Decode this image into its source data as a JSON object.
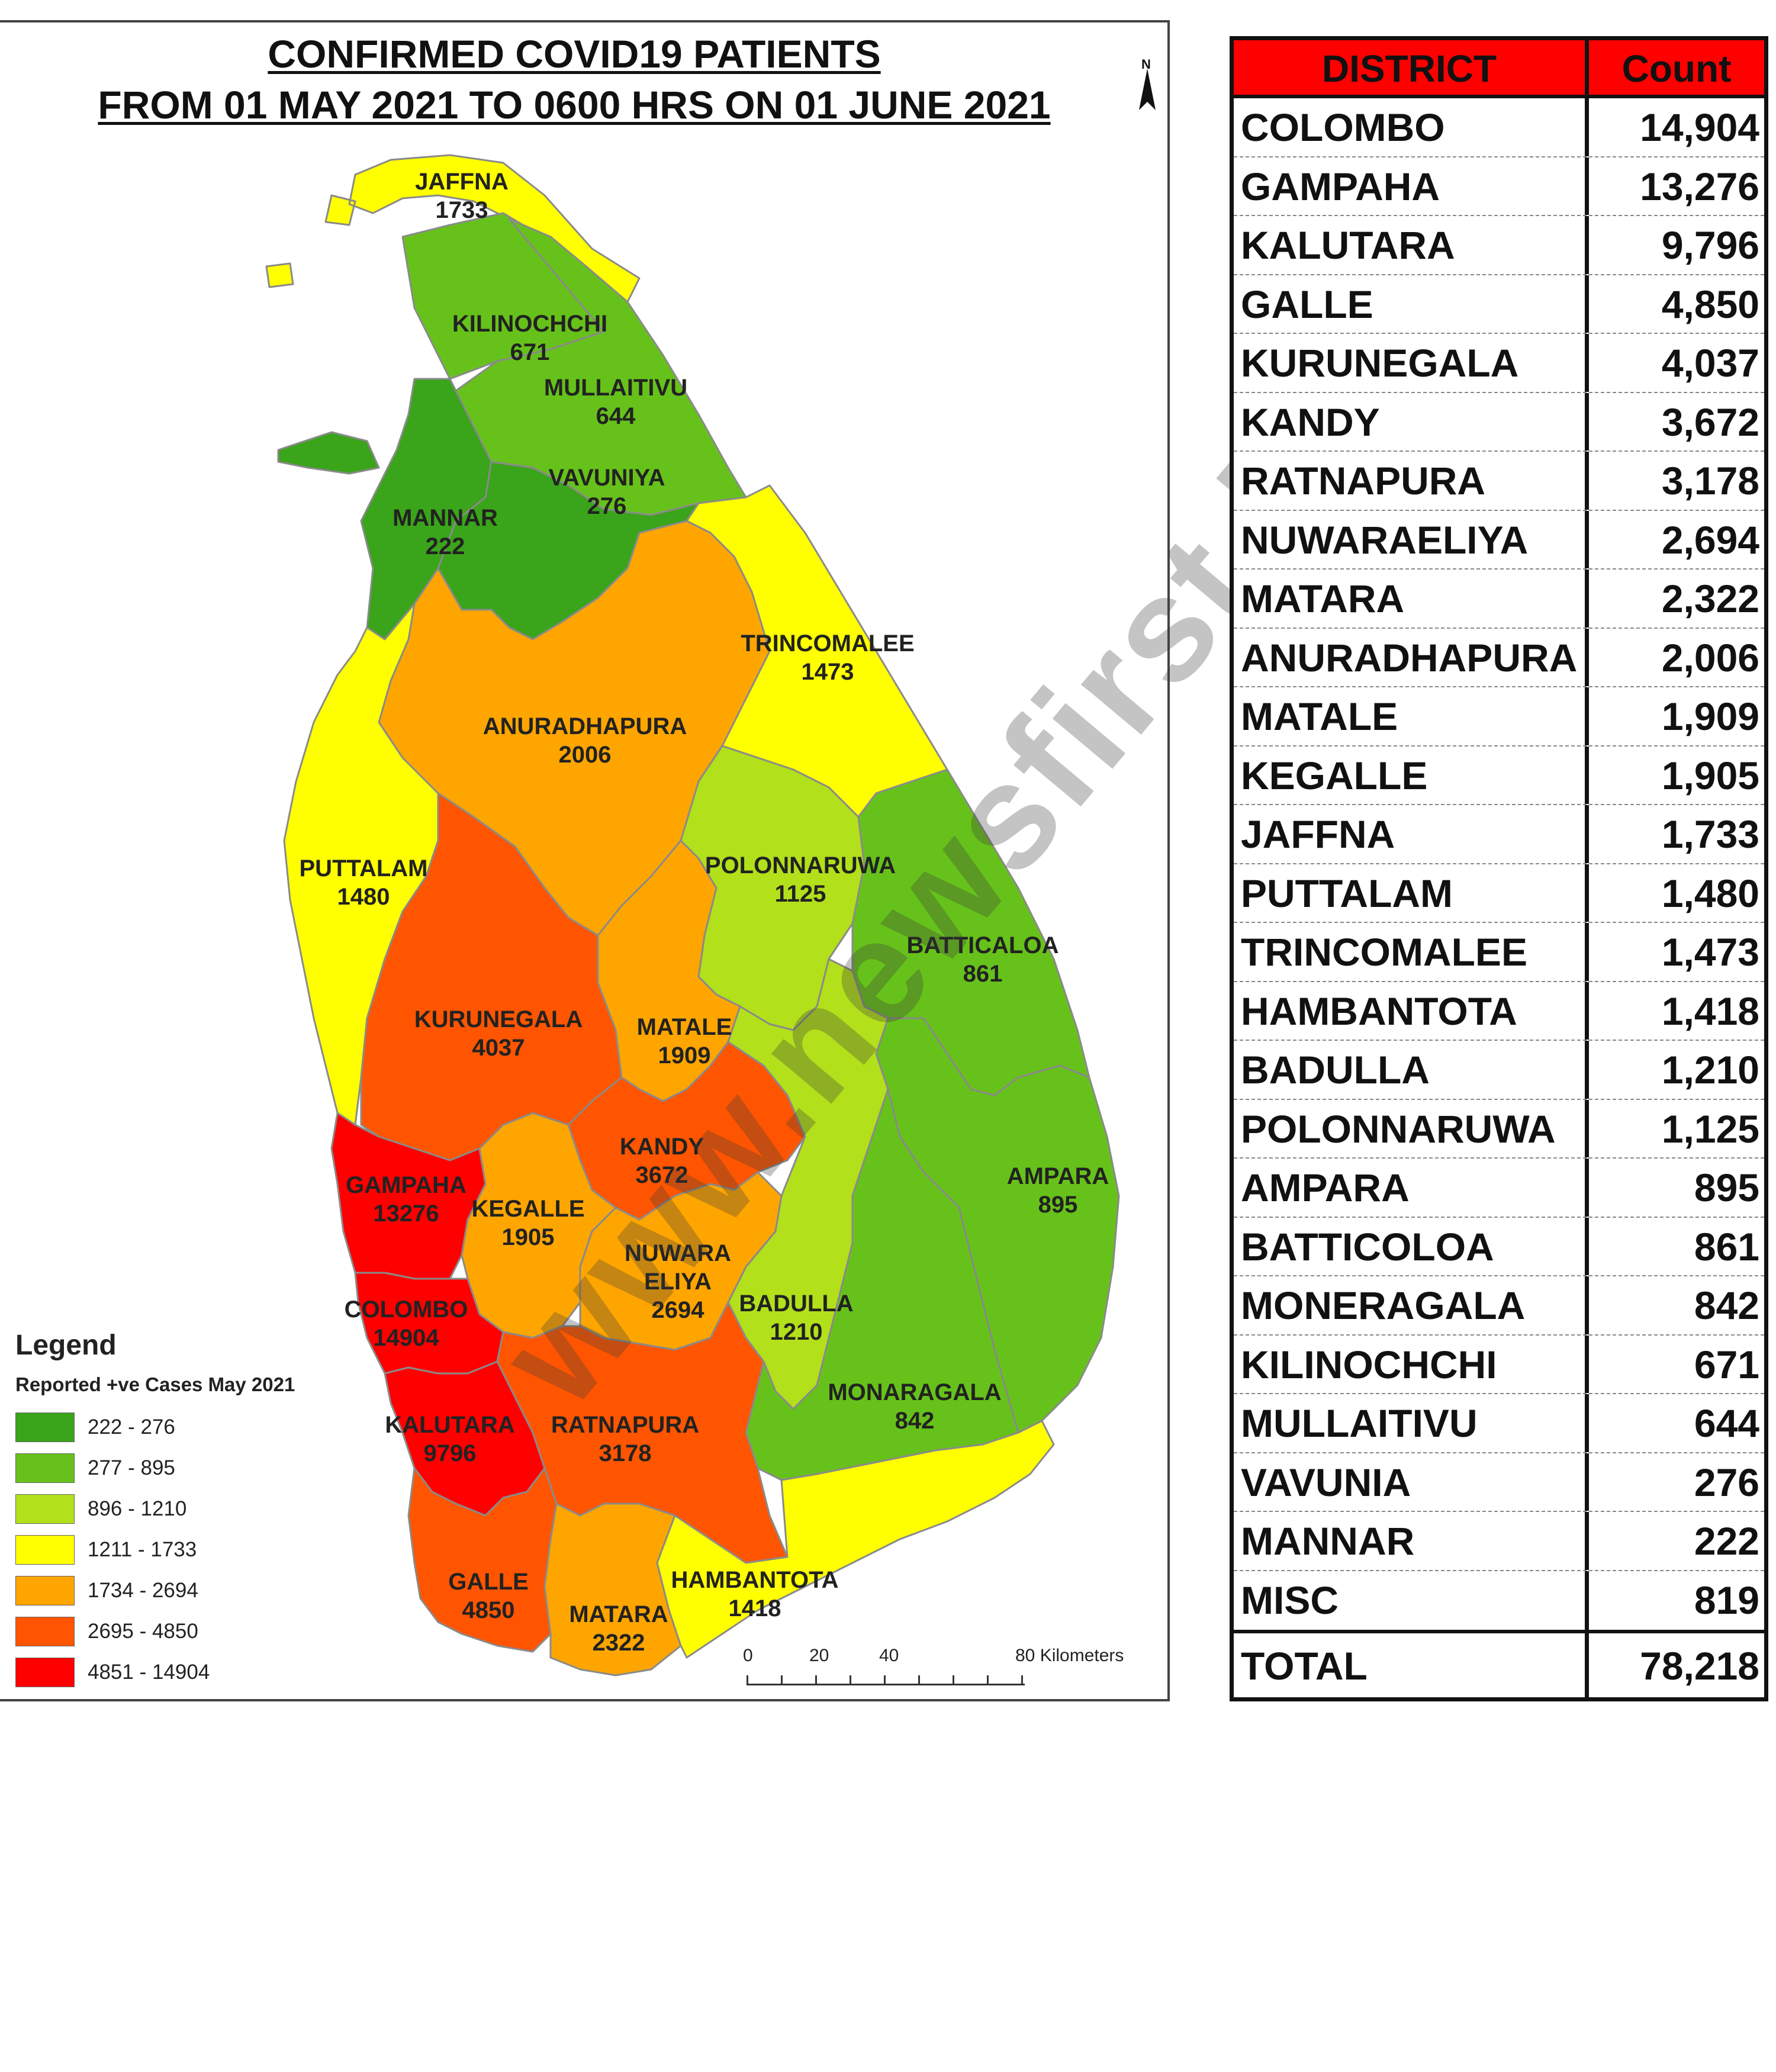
{
  "map": {
    "title_line1": "CONFIRMED COVID19 PATIENTS",
    "title_line2": "FROM 01 MAY 2021 TO 0600 HRS ON 01 JUNE  2021",
    "north_label": "N",
    "districts": [
      {
        "name": "JAFFNA",
        "value": "1733",
        "color": "#ffff00"
      },
      {
        "name": "KILINOCHCHI",
        "value": "671",
        "color": "#66c21a"
      },
      {
        "name": "MULLAITIVU",
        "value": "644",
        "color": "#66c21a"
      },
      {
        "name": "VAVUNIYA",
        "value": "276",
        "color": "#3aa41a"
      },
      {
        "name": "MANNAR",
        "value": "222",
        "color": "#3aa41a"
      },
      {
        "name": "TRINCOMALEE",
        "value": "1473",
        "color": "#ffff00"
      },
      {
        "name": "ANURADHAPURA",
        "value": "2006",
        "color": "#ffa500"
      },
      {
        "name": "PUTTALAM",
        "value": "1480",
        "color": "#ffff00"
      },
      {
        "name": "POLONNARUWA",
        "value": "1125",
        "color": "#b2e01a"
      },
      {
        "name": "BATTICALOA",
        "value": "861",
        "color": "#66c21a"
      },
      {
        "name": "KURUNEGALA",
        "value": "4037",
        "color": "#ff5500"
      },
      {
        "name": "MATALE",
        "value": "1909",
        "color": "#ffa500"
      },
      {
        "name": "KANDY",
        "value": "3672",
        "color": "#ff5500"
      },
      {
        "name": "AMPARA",
        "value": "895",
        "color": "#66c21a"
      },
      {
        "name": "GAMPAHA",
        "value": "13276",
        "color": "#ff0000"
      },
      {
        "name": "KEGALLE",
        "value": "1905",
        "color": "#ffa500"
      },
      {
        "name": "NUWARA ELIYA",
        "value": "2694",
        "color": "#ffa500"
      },
      {
        "name": "COLOMBO",
        "value": "14904",
        "color": "#ff0000"
      },
      {
        "name": "BADULLA",
        "value": "1210",
        "color": "#b2e01a"
      },
      {
        "name": "MONARAGALA",
        "value": "842",
        "color": "#66c21a"
      },
      {
        "name": "KALUTARA",
        "value": "9796",
        "color": "#ff0000"
      },
      {
        "name": "RATNAPURA",
        "value": "3178",
        "color": "#ff5500"
      },
      {
        "name": "GALLE",
        "value": "4850",
        "color": "#ff5500"
      },
      {
        "name": "MATARA",
        "value": "2322",
        "color": "#ffa500"
      },
      {
        "name": "HAMBANTOTA",
        "value": "1418",
        "color": "#ffff00"
      }
    ],
    "legend": {
      "heading": "Legend",
      "subtitle": "Reported +ve Cases May 2021",
      "classes": [
        {
          "range": "222 - 276",
          "color": "#3aa41a"
        },
        {
          "range": "277 - 895",
          "color": "#66c21a"
        },
        {
          "range": "896 - 1210",
          "color": "#b2e01a"
        },
        {
          "range": "1211 - 1733",
          "color": "#ffff00"
        },
        {
          "range": "1734 - 2694",
          "color": "#ffa500"
        },
        {
          "range": "2695 - 4850",
          "color": "#ff5500"
        },
        {
          "range": "4851 - 14904",
          "color": "#ff0000"
        }
      ]
    },
    "scale": {
      "t0": "0",
      "t20": "20",
      "t40": "40",
      "t80": "80 Kilometers"
    }
  },
  "table": {
    "header_district": "DISTRICT",
    "header_count": "Count",
    "header_color": "#ff0000",
    "rows": [
      {
        "district": "COLOMBO",
        "count": "14,904"
      },
      {
        "district": "GAMPAHA",
        "count": "13,276"
      },
      {
        "district": "KALUTARA",
        "count": "9,796"
      },
      {
        "district": "GALLE",
        "count": "4,850"
      },
      {
        "district": "KURUNEGALA",
        "count": "4,037"
      },
      {
        "district": "KANDY",
        "count": "3,672"
      },
      {
        "district": "RATNAPURA",
        "count": "3,178"
      },
      {
        "district": "NUWARAELIYA",
        "count": "2,694"
      },
      {
        "district": "MATARA",
        "count": "2,322"
      },
      {
        "district": "ANURADHAPURA",
        "count": "2,006"
      },
      {
        "district": "MATALE",
        "count": "1,909"
      },
      {
        "district": "KEGALLE",
        "count": "1,905"
      },
      {
        "district": "JAFFNA",
        "count": "1,733"
      },
      {
        "district": "PUTTALAM",
        "count": "1,480"
      },
      {
        "district": "TRINCOMALEE",
        "count": "1,473"
      },
      {
        "district": "HAMBANTOTA",
        "count": "1,418"
      },
      {
        "district": "BADULLA",
        "count": "1,210"
      },
      {
        "district": "POLONNARUWA",
        "count": "1,125"
      },
      {
        "district": "AMPARA",
        "count": "895"
      },
      {
        "district": "BATTICOLOA",
        "count": "861"
      },
      {
        "district": "MONERAGALA",
        "count": "842"
      },
      {
        "district": "KILINOCHCHI",
        "count": "671"
      },
      {
        "district": "MULLAITIVU",
        "count": "644"
      },
      {
        "district": "VAVUNIA",
        "count": "276"
      },
      {
        "district": "MANNAR",
        "count": "222"
      },
      {
        "district": "MISC",
        "count": "819"
      }
    ],
    "total_label": "TOTAL",
    "total_count": "78,218"
  },
  "watermark": "www.newsfirst.lk"
}
